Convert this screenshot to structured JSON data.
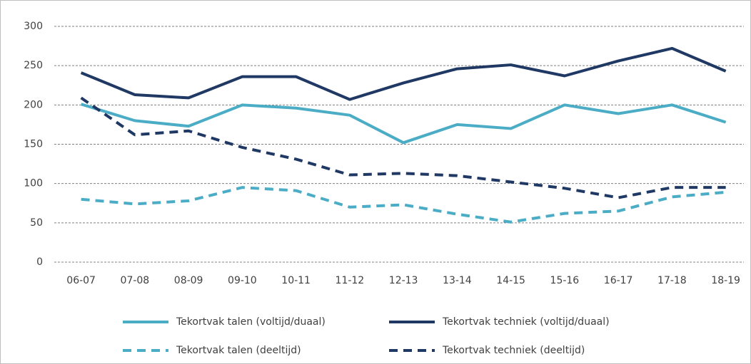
{
  "chart_data": {
    "type": "line",
    "categories": [
      "06-07",
      "07-08",
      "08-09",
      "09-10",
      "10-11",
      "11-12",
      "12-13",
      "13-14",
      "14-15",
      "15-16",
      "16-17",
      "17-18",
      "18-19"
    ],
    "series": [
      {
        "name": "Tekortvak talen (voltijd/duaal)",
        "color": "#4bacc6",
        "dashed": false,
        "values": [
          201,
          180,
          173,
          200,
          196,
          187,
          152,
          175,
          170,
          200,
          189,
          200,
          178
        ]
      },
      {
        "name": "Tekortvak techniek (voltijd/duaal)",
        "color": "#1f3864",
        "dashed": false,
        "values": [
          241,
          213,
          209,
          236,
          236,
          207,
          228,
          246,
          251,
          237,
          256,
          272,
          243
        ]
      },
      {
        "name": "Tekortvak talen (deeltijd)",
        "color": "#4bacc6",
        "dashed": true,
        "values": [
          80,
          74,
          78,
          95,
          91,
          70,
          73,
          61,
          51,
          62,
          65,
          83,
          89
        ]
      },
      {
        "name": "Tekortvak techniek (deeltijd)",
        "color": "#1f3864",
        "dashed": true,
        "values": [
          209,
          162,
          167,
          146,
          131,
          111,
          113,
          110,
          102,
          94,
          82,
          95,
          95
        ]
      }
    ],
    "ylim": [
      0,
      300
    ],
    "yticks": [
      0,
      50,
      100,
      150,
      200,
      250,
      300
    ],
    "grid": true
  }
}
